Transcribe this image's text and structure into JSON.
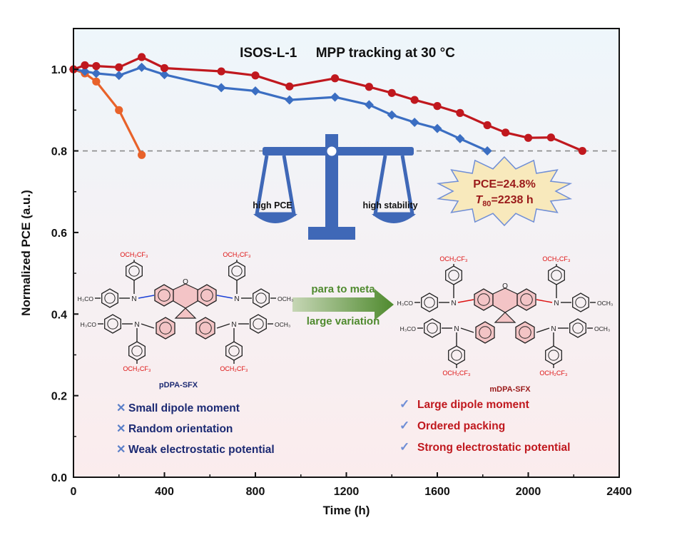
{
  "chart_data": {
    "type": "line",
    "title": "ISOS-L-1     MPP tracking at 30 °C",
    "xlabel": "Time (h)",
    "ylabel": "Normalized PCE (a.u.)",
    "xlim": [
      0,
      2400
    ],
    "ylim": [
      0.0,
      1.1
    ],
    "xticks": [
      "0",
      "400",
      "800",
      "1200",
      "1600",
      "2000",
      "2400"
    ],
    "yticks": [
      "0.0",
      "0.2",
      "0.4",
      "0.6",
      "0.8",
      "1.0"
    ],
    "reference_line": {
      "y": 0.8,
      "style": "dashed"
    },
    "series": [
      {
        "color": "#e8622a",
        "marker": "circle",
        "x": [
          0,
          50,
          100,
          200,
          300
        ],
        "y": [
          1.0,
          0.99,
          0.97,
          0.9,
          0.79
        ]
      },
      {
        "color": "#3b6ec2",
        "marker": "diamond",
        "x": [
          0,
          50,
          100,
          200,
          300,
          400,
          650,
          800,
          950,
          1150,
          1300,
          1400,
          1500,
          1600,
          1700,
          1820
        ],
        "y": [
          1.0,
          0.995,
          0.99,
          0.985,
          1.005,
          0.987,
          0.955,
          0.947,
          0.925,
          0.932,
          0.913,
          0.888,
          0.87,
          0.855,
          0.83,
          0.8
        ]
      },
      {
        "color": "#c0181e",
        "marker": "circle",
        "x": [
          0,
          50,
          100,
          200,
          300,
          400,
          650,
          800,
          950,
          1150,
          1300,
          1400,
          1500,
          1600,
          1700,
          1820,
          1900,
          2000,
          2100,
          2238
        ],
        "y": [
          1.0,
          1.01,
          1.008,
          1.005,
          1.03,
          1.003,
          0.995,
          0.985,
          0.958,
          0.978,
          0.957,
          0.942,
          0.925,
          0.91,
          0.893,
          0.863,
          0.845,
          0.832,
          0.833,
          0.8
        ]
      }
    ],
    "annotations": {
      "scale_left": "high PCE",
      "scale_right": "high stability",
      "burst_line1": "PCE=24.8%",
      "burst_line2_t": "T",
      "burst_line2_sub": "80",
      "burst_line2_rest": "=2238 h",
      "arrow_top": "para to meta",
      "arrow_bottom": "large variation",
      "left_molecule": "pDPA-SFX",
      "right_molecule": "mDPA-SFX",
      "left_features": [
        "Small dipole moment",
        "Random orientation",
        "Weak electrostatic potential"
      ],
      "right_features": [
        "Large dipole moment",
        "Ordered packing",
        "Strong electrostatic potential"
      ],
      "left_mark": "✕",
      "right_mark": "✓"
    },
    "molecule_labels": {
      "och2cf3": "OCH₂CF₃",
      "h3co": "H₃CO",
      "och3": "OCH₃",
      "n": "N",
      "o": "O"
    },
    "colors": {
      "bg_top": "#eef6fb",
      "bg_bottom": "#fbeced",
      "scale": "#3f68b7",
      "arrow": "#4f8a2e",
      "burst_fill": "#f8e9bc",
      "burst_stroke": "#6f8ed6",
      "feature_left": "#1c2a73",
      "feature_right": "#c0181e",
      "dark_red_text": "#9a1a1a"
    }
  }
}
